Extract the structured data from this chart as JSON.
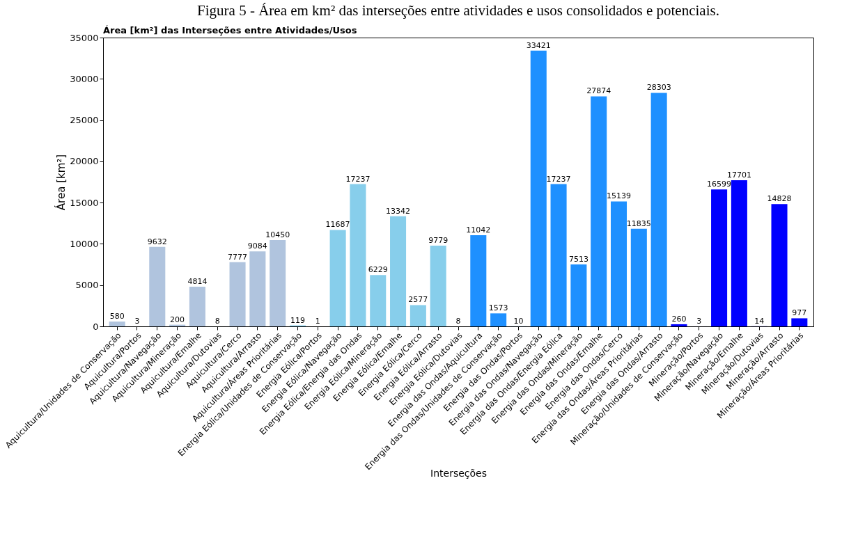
{
  "chart_data": {
    "type": "bar",
    "title": "Figura 5 - Área em km² das interseções entre atividades e usos consolidados e potenciais.",
    "subtitle": "Área [km²] das Interseções entre Atividades/Usos",
    "xlabel": "Interseções",
    "ylabel": "Área [km²]",
    "categories": [
      "Aquicultura/Unidades de Conservação",
      "Aquicultura/Portos",
      "Aquicultura/Navegação",
      "Aquicultura/Mineração",
      "Aquicultura/Emalhe",
      "Aquicultura/Dutovias",
      "Aquicultura/Cerco",
      "Aquicultura/Arrasto",
      "Aquicultura/Áreas Prioritárias",
      "Energia Eólica/Unidades de Conservação",
      "Energia Eólica/Portos",
      "Energia Eólica/Navegação",
      "Energia Eólica/Energia das Ondas",
      "Energia Eólica/Mineração",
      "Energia Eólica/Emalhe",
      "Energia Eólica/Cerco",
      "Energia Eólica/Arrasto",
      "Energia Eólica/Dutovias",
      "Energia das Ondas/Aquicultura",
      "Energia das Ondas/Unidades de Conservação",
      "Energia das Ondas/Portos",
      "Energia das Ondas/Navegação",
      "Energia das Ondas/Energia Eólica",
      "Energia das Ondas/Mineração",
      "Energia das Ondas/Emalhe",
      "Energia das Ondas/Cerco",
      "Energia das Ondas/Áreas Prioritárias",
      "Energia das Ondas/Arrasto",
      "Mineração/Unidades de Conservação",
      "Mineração/Portos",
      "Mineração/Navegação",
      "Mineração/Emalhe",
      "Mineração/Dutovias",
      "Mineração/Arrasto",
      "Mineração/Áreas Prioritárias"
    ],
    "values": [
      580,
      3,
      9632,
      200,
      4814,
      8,
      7777,
      9084,
      10450,
      119,
      1,
      11687,
      17237,
      6229,
      13342,
      2577,
      9779,
      8,
      11042,
      1573,
      10,
      33421,
      17237,
      7513,
      27874,
      15139,
      11835,
      28303,
      260,
      3,
      16599,
      17701,
      14,
      14828,
      977
    ],
    "colors": [
      "#b0c4de",
      "#b0c4de",
      "#b0c4de",
      "#b0c4de",
      "#b0c4de",
      "#b0c4de",
      "#b0c4de",
      "#b0c4de",
      "#b0c4de",
      "#87ceeb",
      "#87ceeb",
      "#87ceeb",
      "#87ceeb",
      "#87ceeb",
      "#87ceeb",
      "#87ceeb",
      "#87ceeb",
      "#87ceeb",
      "#1e90ff",
      "#1e90ff",
      "#1e90ff",
      "#1e90ff",
      "#1e90ff",
      "#1e90ff",
      "#1e90ff",
      "#1e90ff",
      "#1e90ff",
      "#1e90ff",
      "#0000ff",
      "#0000ff",
      "#0000ff",
      "#0000ff",
      "#0000ff",
      "#0000ff",
      "#0000ff"
    ],
    "ylim": [
      0,
      35000
    ],
    "yticks": [
      0,
      5000,
      10000,
      15000,
      20000,
      25000,
      30000,
      35000
    ],
    "data_labels": true,
    "grid": false
  }
}
